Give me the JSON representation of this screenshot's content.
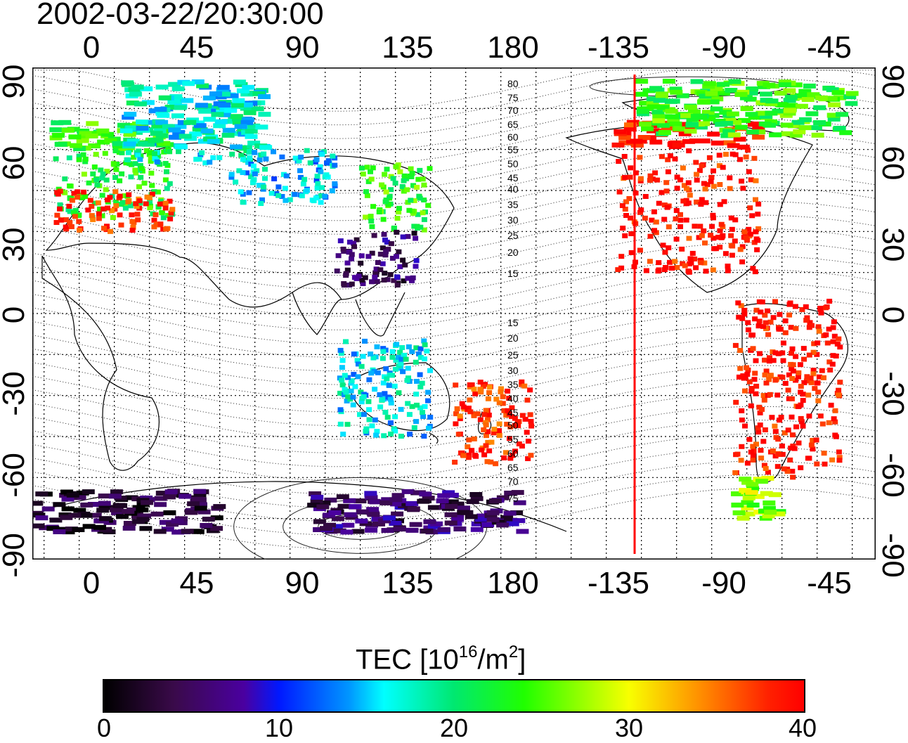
{
  "timestamp": "2002-03-22/20:30:00",
  "longitude_ticks": [
    "0",
    "45",
    "90",
    "135",
    "180",
    "-135",
    "-90",
    "-45"
  ],
  "latitude_ticks": [
    "90",
    "60",
    "30",
    "0",
    "-30",
    "-60",
    "-90"
  ],
  "contour_labels_north": [
    "80",
    "75",
    "70",
    "65",
    "60",
    "55",
    "50",
    "45",
    "40",
    "35",
    "30",
    "25",
    "20",
    "15"
  ],
  "contour_labels_south": [
    "15",
    "20",
    "25",
    "30",
    "35",
    "40",
    "45",
    "50",
    "55",
    "60",
    "65",
    "70",
    "75"
  ],
  "colorbar": {
    "title_main": "TEC  [10",
    "title_sup1": "16",
    "title_mid": "/m",
    "title_sup2": "2",
    "title_end": "]",
    "ticks": [
      "0",
      "10",
      "20",
      "30",
      "40"
    ],
    "range": [
      0,
      40
    ]
  },
  "terminator_line_color": "#ff0000",
  "chart_data": {
    "type": "heatmap",
    "title": "2002-03-22/20:30:00",
    "quantity": "TEC",
    "xlim": [
      -20,
      340
    ],
    "ylim": [
      -90,
      90
    ],
    "grid": true,
    "color_scale": [
      "#000000",
      "#4a00a0",
      "#0018ff",
      "#00ffff",
      "#20ff00",
      "#f8ff00",
      "#ff9000",
      "#ff0000"
    ],
    "regions": [
      {
        "lon_range": [
          -10,
          40
        ],
        "lat_range": [
          35,
          70
        ],
        "tec": 23
      },
      {
        "lon_range": [
          -10,
          40
        ],
        "lat_range": [
          30,
          45
        ],
        "tec": 38
      },
      {
        "lon_range": [
          20,
          80
        ],
        "lat_range": [
          55,
          85
        ],
        "tec": 17
      },
      {
        "lon_range": [
          65,
          110
        ],
        "lat_range": [
          40,
          60
        ],
        "tec": 15
      },
      {
        "lon_range": [
          120,
          150
        ],
        "lat_range": [
          30,
          55
        ],
        "tec": 24
      },
      {
        "lon_range": [
          110,
          145
        ],
        "lat_range": [
          10,
          30
        ],
        "tec": 5
      },
      {
        "lon_range": [
          110,
          150
        ],
        "lat_range": [
          -45,
          -10
        ],
        "tec": 16
      },
      {
        "lon_range": [
          100,
          190
        ],
        "lat_range": [
          -80,
          -65
        ],
        "tec": 5
      },
      {
        "lon_range": [
          -20,
          60
        ],
        "lat_range": [
          -80,
          -65
        ],
        "tec": 3
      },
      {
        "lon_range": [
          160,
          195
        ],
        "lat_range": [
          -55,
          -25
        ],
        "tec": 38
      },
      {
        "lon_range": [
          -130,
          -70
        ],
        "lat_range": [
          15,
          70
        ],
        "tec": 39
      },
      {
        "lon_range": [
          -80,
          -35
        ],
        "lat_range": [
          -60,
          5
        ],
        "tec": 39
      },
      {
        "lon_range": [
          -80,
          -60
        ],
        "lat_range": [
          -75,
          -60
        ],
        "tec": 27
      },
      {
        "lon_range": [
          -120,
          -30
        ],
        "lat_range": [
          65,
          85
        ],
        "tec": 24
      }
    ],
    "terminator_longitude": -127
  }
}
